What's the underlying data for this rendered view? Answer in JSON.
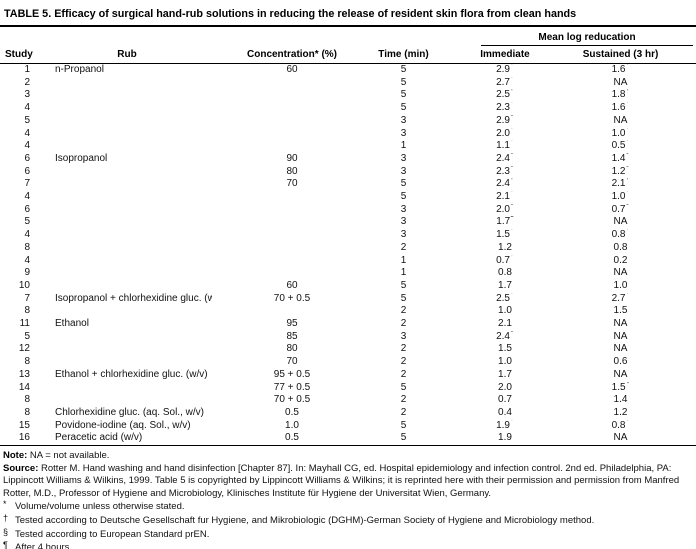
{
  "title": "TABLE 5. Efficacy of surgical hand-rub solutions in reducing the release of resident skin flora from clean hands",
  "table": {
    "spanner": "Mean log reducation",
    "columns": [
      "Study",
      "Rub",
      "Concentration* (%)",
      "Time (min)",
      "Immediate",
      "Sustained (3 hr)"
    ],
    "rows": [
      [
        "1",
        "n-Propanol",
        "60",
        "5",
        "2.9^†",
        "1.6^†"
      ],
      [
        "2",
        "",
        "",
        "5",
        "2.7^†",
        "NA"
      ],
      [
        "3",
        "",
        "",
        "5",
        "2.5^†",
        "1.8^†"
      ],
      [
        "4",
        "",
        "",
        "5",
        "2.3^†",
        "1.6^†"
      ],
      [
        "5",
        "",
        "",
        "3",
        "2.9^§",
        "NA"
      ],
      [
        "4",
        "",
        "",
        "3",
        "2.0^†",
        "1.0^†"
      ],
      [
        "4",
        "",
        "",
        "1",
        "1.1^†",
        "0.5^†"
      ],
      [
        "6",
        "Isopropanol",
        "90",
        "3",
        "2.4^§",
        "1.4^§"
      ],
      [
        "6",
        "",
        "80",
        "3",
        "2.3^§",
        "1.2^§"
      ],
      [
        "7",
        "",
        "70",
        "5",
        "2.4^†",
        "2.1^†"
      ],
      [
        "4",
        "",
        "",
        "5",
        "2.1^†",
        "1.0^†"
      ],
      [
        "6",
        "",
        "",
        "3",
        "2.0^§",
        "0.7^§"
      ],
      [
        "5",
        "",
        "",
        "3",
        "1.7^c",
        "NA"
      ],
      [
        "4",
        "",
        "",
        "3",
        "1.5^†",
        "0.8^†"
      ],
      [
        "8",
        "",
        "",
        "2",
        "1.2",
        "0.8"
      ],
      [
        "4",
        "",
        "",
        "1",
        "0.7^†",
        "0.2"
      ],
      [
        "9",
        "",
        "",
        "1",
        "0.8",
        "NA"
      ],
      [
        "10",
        "",
        "60",
        "5",
        "1.7",
        "1.0"
      ],
      [
        "7",
        "Isopropanol + chlorhexidine gluc. (w/v)",
        "70 + 0.5",
        "5",
        "2.5^†",
        "2.7^†"
      ],
      [
        "8",
        "",
        "",
        "2",
        "1.0",
        "1.5"
      ],
      [
        "11",
        "Ethanol",
        "95",
        "2",
        "2.1",
        "NA"
      ],
      [
        "5",
        "",
        "85",
        "3",
        "2.4^§",
        "NA"
      ],
      [
        "12",
        "",
        "80",
        "2",
        "1.5",
        "NA"
      ],
      [
        "8",
        "",
        "70",
        "2",
        "1.0",
        "0.6"
      ],
      [
        "13",
        "Ethanol + chlorhexidine gluc. (w/v)",
        "95 + 0.5",
        "2",
        "1.7",
        "NA"
      ],
      [
        "14",
        "",
        "77 + 0.5",
        "5",
        "2.0",
        "1.5^¶"
      ],
      [
        "8",
        "",
        "70 + 0.5",
        "2",
        "0.7",
        "1.4"
      ],
      [
        "8",
        "Chlorhexidine gluc. (aq. Sol., w/v)",
        "0.5",
        "2",
        "0.4",
        "1.2"
      ],
      [
        "15",
        "Povidone-iodine (aq. Sol., w/v)",
        "1.0",
        "5",
        "1.9^†",
        "0.8^†"
      ],
      [
        "16",
        "Peracetic acid (w/v)",
        "0.5",
        "5",
        "1.9",
        "NA"
      ]
    ]
  },
  "notes": {
    "note_label": "Note:",
    "note_text": "NA = not available.",
    "source_label": "Source:",
    "source_text": "Rotter M. Hand washing and hand disinfection [Chapter 87]. In: Mayhall CG, ed. Hospital epidemiology and infection control. 2nd ed. Philadelphia, PA: Lippincott Williams & Wilkins, 1999. Table 5 is copyrighted by Lippincott Williams & Wilkins; it is reprinted here with their permission and permission from Manfred Rotter, M.D., Professor of Hygiene and Microbiology, Klinisches Institute für Hygiene der Universitat Wien, Germany.",
    "footnotes": [
      {
        "marker": "*",
        "text": "Volume/volume unless otherwise stated."
      },
      {
        "marker": "†",
        "text": "Tested according to Deutsche Gesellschaft fur Hygiene, and Mikrobiologic (DGHM)-German Society of Hygiene and Microbiology method."
      },
      {
        "marker": "§",
        "text": "Tested according to European Standard prEN."
      },
      {
        "marker": "¶",
        "text": "After 4 hours."
      }
    ]
  }
}
